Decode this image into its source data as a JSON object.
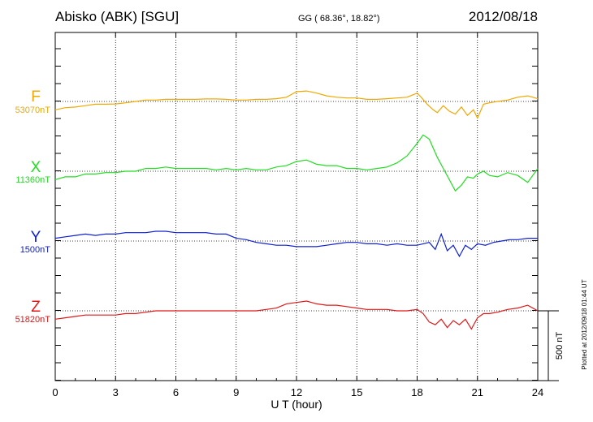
{
  "header": {
    "station": "Abisko (ABK)  [SGU]",
    "coords": "GG ( 68.36°,  18.82°)",
    "date": "2012/08/18"
  },
  "plot_note": "Plotted at 2012/09/18 01:44 UT",
  "chart_data": {
    "type": "line",
    "xlabel": "U T (hour)",
    "xlim": [
      0,
      24
    ],
    "xticks": [
      0,
      3,
      6,
      9,
      12,
      15,
      18,
      21,
      24
    ],
    "grid": true,
    "scale_bar": "500 nT",
    "series": [
      {
        "name": "F",
        "baseline": "53070nT",
        "color": "#f0a800",
        "x": [
          0,
          0.5,
          1,
          1.5,
          2,
          2.5,
          3,
          3.5,
          4,
          4.5,
          5,
          5.5,
          6,
          6.5,
          7,
          7.5,
          8,
          8.5,
          9,
          9.5,
          10,
          10.5,
          11,
          11.5,
          12,
          12.5,
          13,
          13.5,
          14,
          14.5,
          15,
          15.5,
          16,
          16.5,
          17,
          17.5,
          18,
          18.2,
          18.5,
          18.8,
          19,
          19.3,
          19.6,
          19.9,
          20.2,
          20.5,
          20.8,
          21,
          21.3,
          21.6,
          22,
          22.5,
          23,
          23.5,
          24
        ],
        "values": [
          -60,
          -45,
          -40,
          -30,
          -20,
          -20,
          -18,
          -10,
          0,
          10,
          10,
          15,
          15,
          15,
          15,
          18,
          18,
          15,
          10,
          10,
          15,
          15,
          20,
          30,
          70,
          75,
          60,
          40,
          30,
          25,
          25,
          15,
          15,
          20,
          25,
          30,
          60,
          30,
          -20,
          -60,
          -80,
          -30,
          -70,
          -90,
          -40,
          -100,
          -60,
          -120,
          -20,
          -10,
          0,
          10,
          30,
          40,
          20
        ]
      },
      {
        "name": "X",
        "baseline": "11360nT",
        "color": "#22dd22",
        "x": [
          0,
          0.5,
          1,
          1.5,
          2,
          2.5,
          3,
          3.5,
          4,
          4.5,
          5,
          5.5,
          6,
          6.5,
          7,
          7.5,
          8,
          8.5,
          9,
          9.5,
          10,
          10.5,
          11,
          11.5,
          12,
          12.5,
          13,
          13.5,
          14,
          14.5,
          15,
          15.5,
          16,
          16.5,
          17,
          17.5,
          18,
          18.3,
          18.6,
          19,
          19.3,
          19.6,
          19.9,
          20.2,
          20.5,
          20.8,
          21,
          21.3,
          21.6,
          22,
          22.5,
          23,
          23.5,
          24
        ],
        "values": [
          -60,
          -40,
          -40,
          -20,
          -20,
          -10,
          -10,
          0,
          0,
          20,
          20,
          30,
          20,
          20,
          20,
          20,
          10,
          20,
          10,
          20,
          10,
          10,
          30,
          40,
          70,
          80,
          50,
          40,
          40,
          20,
          20,
          10,
          20,
          30,
          60,
          110,
          200,
          260,
          230,
          100,
          20,
          -60,
          -140,
          -100,
          -40,
          -50,
          -20,
          0,
          -30,
          -40,
          -10,
          -30,
          -80,
          20
        ]
      },
      {
        "name": "Y",
        "baseline": "1500nT",
        "color": "#1020d0",
        "x": [
          0,
          0.5,
          1,
          1.5,
          2,
          2.5,
          3,
          3.5,
          4,
          4.5,
          5,
          5.5,
          6,
          6.5,
          7,
          7.5,
          8,
          8.5,
          9,
          9.5,
          10,
          10.5,
          11,
          11.5,
          12,
          12.5,
          13,
          13.5,
          14,
          14.5,
          15,
          15.5,
          16,
          16.5,
          17,
          17.5,
          18,
          18.3,
          18.6,
          18.9,
          19.2,
          19.5,
          19.8,
          20.1,
          20.4,
          20.7,
          21,
          21.4,
          21.8,
          22.2,
          22.6,
          23,
          23.5,
          24
        ],
        "values": [
          20,
          30,
          40,
          50,
          40,
          50,
          50,
          60,
          60,
          60,
          70,
          70,
          60,
          60,
          60,
          60,
          50,
          50,
          20,
          10,
          -10,
          -20,
          -30,
          -30,
          -40,
          -40,
          -40,
          -30,
          -20,
          -10,
          -10,
          -20,
          -20,
          -30,
          -20,
          -30,
          -30,
          -20,
          -10,
          -60,
          50,
          -70,
          -30,
          -110,
          -30,
          -60,
          -20,
          -30,
          -10,
          0,
          10,
          10,
          20,
          20
        ]
      },
      {
        "name": "Z",
        "baseline": "51820nT",
        "color": "#e01818",
        "x": [
          0,
          0.5,
          1,
          1.5,
          2,
          2.5,
          3,
          3.5,
          4,
          4.5,
          5,
          5.5,
          6,
          6.5,
          7,
          7.5,
          8,
          8.5,
          9,
          9.5,
          10,
          10.5,
          11,
          11.5,
          12,
          12.5,
          13,
          13.5,
          14,
          14.5,
          15,
          15.5,
          16,
          16.5,
          17,
          17.5,
          18,
          18.3,
          18.6,
          18.9,
          19.2,
          19.5,
          19.8,
          20.1,
          20.4,
          20.7,
          21,
          21.3,
          21.6,
          22,
          22.5,
          23,
          23.5,
          24
        ],
        "values": [
          -60,
          -50,
          -40,
          -30,
          -30,
          -30,
          -30,
          -20,
          -20,
          -10,
          0,
          0,
          0,
          0,
          0,
          0,
          0,
          0,
          0,
          0,
          0,
          10,
          20,
          50,
          60,
          70,
          50,
          40,
          40,
          30,
          20,
          10,
          10,
          10,
          0,
          0,
          10,
          -20,
          -80,
          -100,
          -60,
          -120,
          -70,
          -100,
          -60,
          -130,
          -50,
          -20,
          -20,
          -10,
          10,
          20,
          40,
          0
        ]
      }
    ]
  }
}
